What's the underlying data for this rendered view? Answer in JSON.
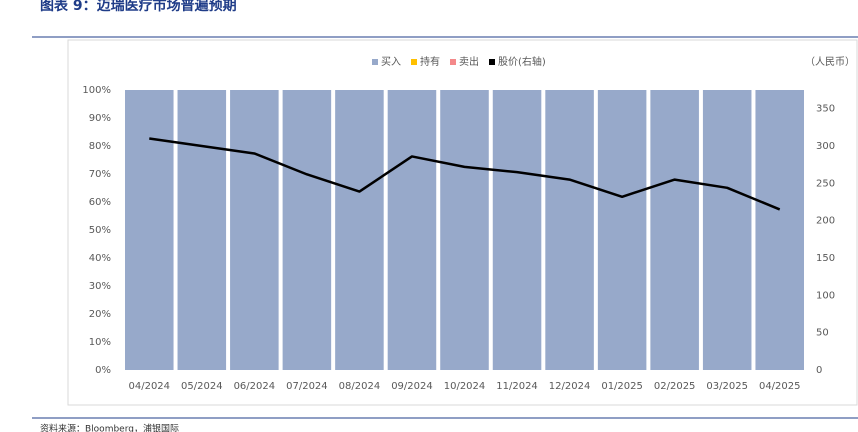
{
  "title": "图表 9：迈瑞医疗市场普遍预期",
  "source": "资料来源：Bloomberg，浦银国际",
  "chart_data": {
    "type": "bar",
    "y2_label": "（人民币）",
    "categories": [
      "04/2024",
      "05/2024",
      "06/2024",
      "07/2024",
      "08/2024",
      "09/2024",
      "10/2024",
      "11/2024",
      "12/2024",
      "01/2025",
      "02/2025",
      "03/2025",
      "04/2025"
    ],
    "series": [
      {
        "name": "买入",
        "color": "#97a9ca",
        "values": [
          100,
          100,
          100,
          100,
          100,
          100,
          100,
          100,
          100,
          100,
          100,
          100,
          100
        ]
      },
      {
        "name": "持有",
        "color": "#ffc000",
        "values": [
          0,
          0,
          0,
          0,
          0,
          0,
          0,
          0,
          0,
          0,
          0,
          0,
          0
        ]
      },
      {
        "name": "卖出",
        "color": "#f4898a",
        "values": [
          0,
          0,
          0,
          0,
          0,
          0,
          0,
          0,
          0,
          0,
          0,
          0,
          0
        ]
      },
      {
        "name": "股价(右轴)",
        "color": "#000000",
        "axis": "y2",
        "values": [
          310,
          300,
          290,
          262,
          239,
          286,
          272,
          265,
          255,
          232,
          255,
          244,
          215
        ]
      }
    ],
    "ylim": [
      0,
      100
    ],
    "yticks": [
      {
        "value": 0,
        "label": "0%"
      },
      {
        "value": 10,
        "label": "10%"
      },
      {
        "value": 20,
        "label": "20%"
      },
      {
        "value": 30,
        "label": "30%"
      },
      {
        "value": 40,
        "label": "40%"
      },
      {
        "value": 50,
        "label": "50%"
      },
      {
        "value": 60,
        "label": "60%"
      },
      {
        "value": 70,
        "label": "70%"
      },
      {
        "value": 80,
        "label": "80%"
      },
      {
        "value": 90,
        "label": "90%"
      },
      {
        "value": 100,
        "label": "100%"
      }
    ],
    "y2lim": [
      0,
      375
    ],
    "y2ticks": [
      0,
      50,
      100,
      150,
      200,
      250,
      300,
      350
    ],
    "legend": "top"
  }
}
